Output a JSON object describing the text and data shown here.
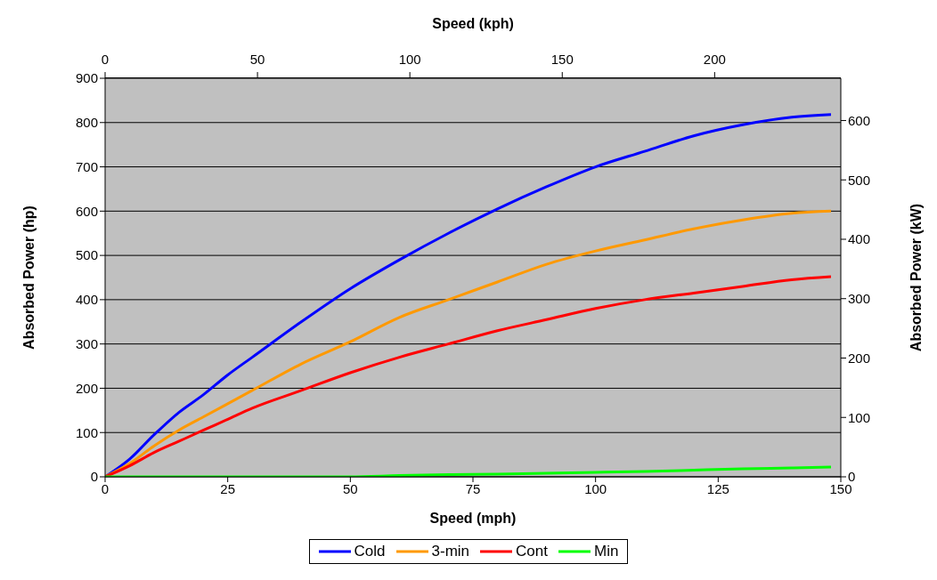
{
  "chart_data": {
    "type": "line",
    "xlabel": "Speed (mph)",
    "ylabel": "Absorbed Power (hp)",
    "y2label": "Absorbed Power (kW)",
    "x2label": "Speed (kph)",
    "x": [
      0,
      5,
      10,
      15,
      20,
      25,
      30,
      40,
      50,
      60,
      70,
      80,
      90,
      100,
      110,
      120,
      130,
      140,
      148
    ],
    "series": [
      {
        "name": "Cold",
        "color": "#0000ff",
        "values": [
          0,
          40,
          95,
          145,
          185,
          230,
          270,
          350,
          425,
          490,
          550,
          605,
          655,
          700,
          735,
          770,
          795,
          812,
          818
        ]
      },
      {
        "name": "3-min",
        "color": "#ff9900",
        "values": [
          0,
          30,
          70,
          105,
          135,
          165,
          195,
          255,
          305,
          360,
          400,
          440,
          480,
          510,
          535,
          560,
          580,
          595,
          600
        ]
      },
      {
        "name": "Cont",
        "color": "#ff0000",
        "values": [
          0,
          25,
          55,
          80,
          105,
          130,
          155,
          195,
          235,
          270,
          300,
          330,
          355,
          380,
          400,
          415,
          430,
          445,
          452
        ]
      },
      {
        "name": "Min",
        "color": "#00ff00",
        "values": [
          0,
          0,
          0,
          0,
          0,
          0,
          0,
          0,
          0,
          3,
          5,
          6,
          8,
          10,
          12,
          15,
          18,
          20,
          22
        ]
      }
    ],
    "xlim": [
      0,
      150
    ],
    "xticks": [
      0,
      25,
      50,
      75,
      100,
      125,
      150
    ],
    "x2lim": [
      0,
      241.4
    ],
    "x2ticks": [
      0,
      50,
      100,
      150,
      200
    ],
    "ylim": [
      0,
      900
    ],
    "yticks": [
      0,
      100,
      200,
      300,
      400,
      500,
      600,
      700,
      800,
      900
    ],
    "y2lim": [
      0,
      671.1
    ],
    "y2ticks": [
      0,
      100,
      200,
      300,
      400,
      500,
      600
    ],
    "grid": "y",
    "legend": "bottom",
    "marker": "none",
    "line_style": "solid"
  }
}
